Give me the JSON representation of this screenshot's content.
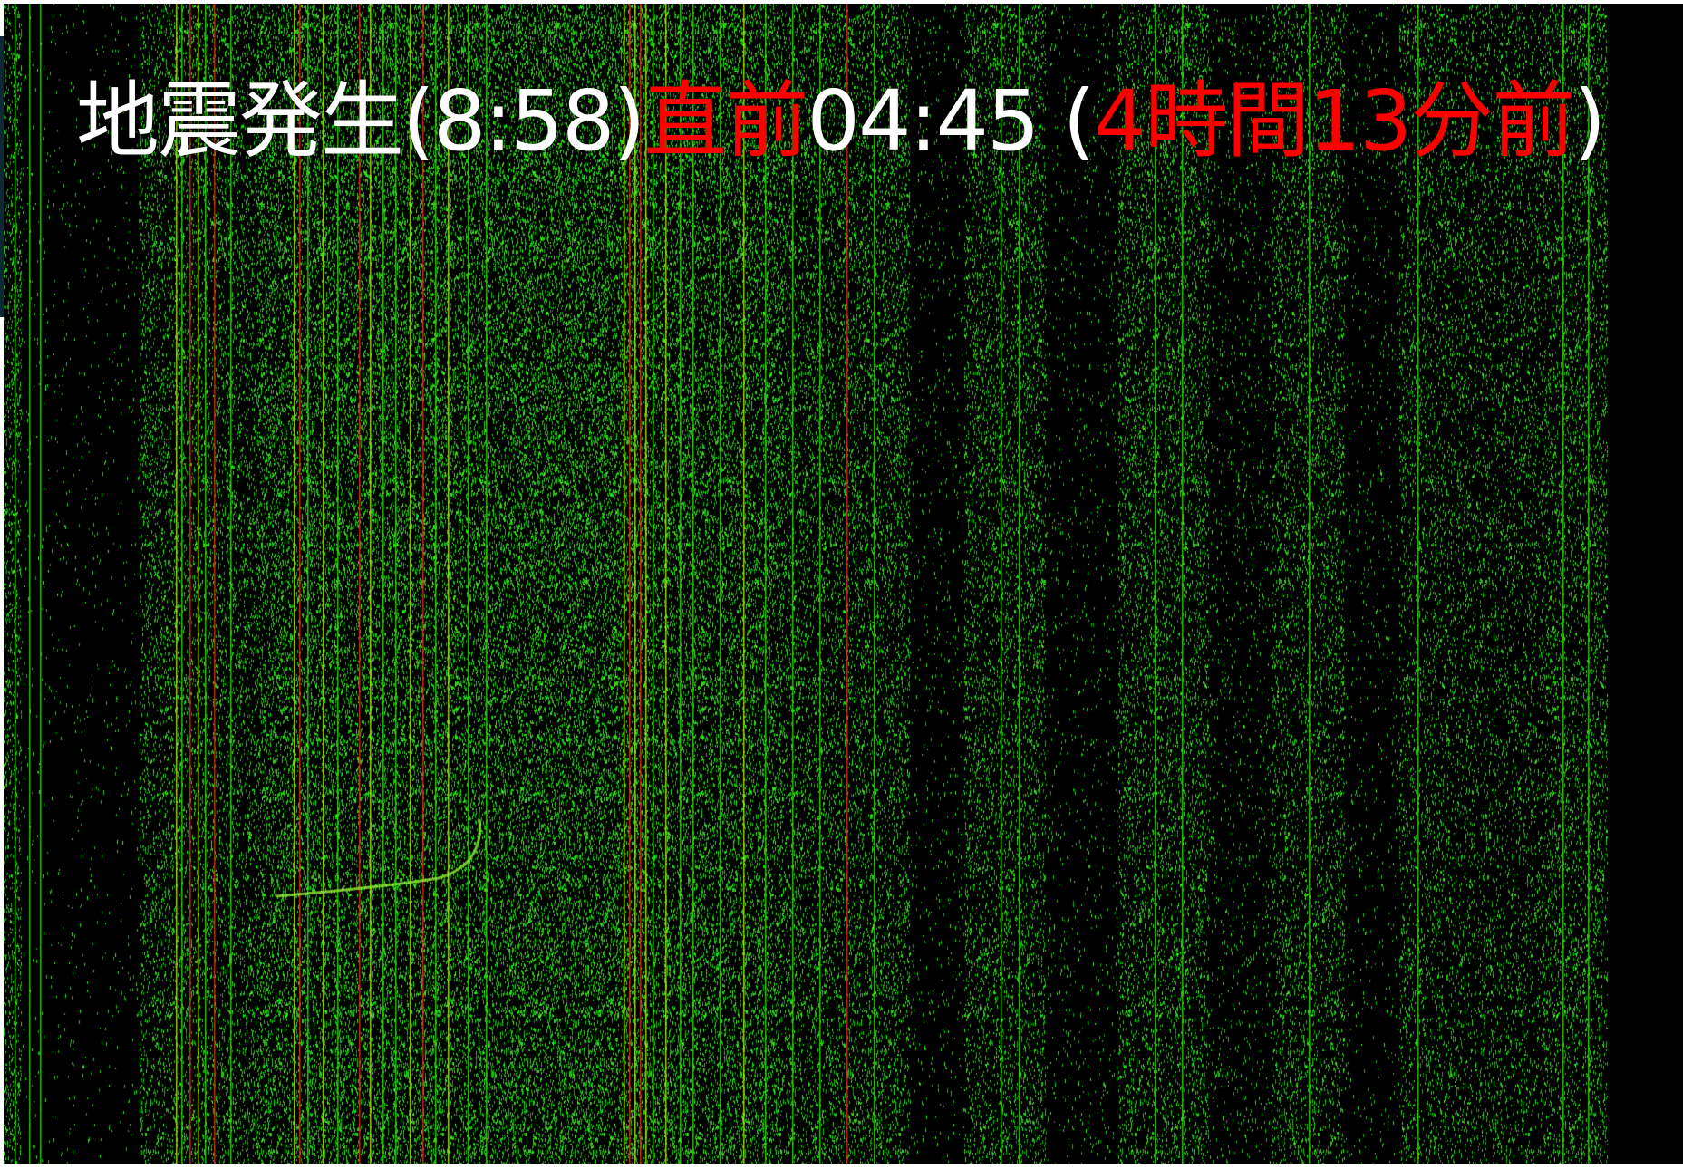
{
  "caption": {
    "part1": "地震発生(8:58)",
    "part2": "直前",
    "part3": "04:45 (",
    "part4": "4時間13分前",
    "part5": ")"
  },
  "colors": {
    "background": "#000000",
    "caption_white": "#ffffff",
    "caption_red": "#ff0000",
    "stripe_green": "#3cdc14",
    "stripe_yellow_green": "#b4f01e",
    "stripe_red": "#e6321e"
  }
}
